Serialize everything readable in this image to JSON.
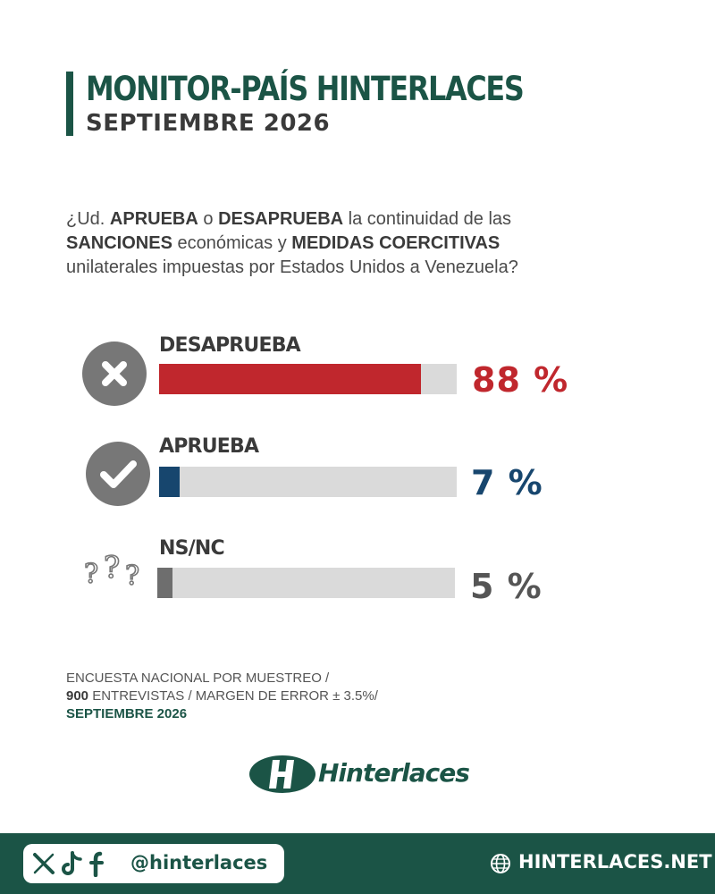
{
  "header": {
    "title": "MONITOR-PAÍS HINTERLACES",
    "subtitle": "SEPTIEMBRE 2026"
  },
  "question": {
    "p1": "¿Ud. ",
    "b1": "APRUEBA",
    "p2": " o ",
    "b2": "DESAPRUEBA",
    "p3": " la continuidad de las ",
    "b3": "SANCIONES",
    "p4": " económicas y ",
    "b4": "MEDIDAS COERCITIVAS",
    "p5": " unilaterales impuestas por Estados Unidos a Venezuela?"
  },
  "chart_data": {
    "type": "bar",
    "orientation": "horizontal",
    "unit": "%",
    "xlim": [
      0,
      100
    ],
    "categories": [
      "DESAPRUEBA",
      "APRUEBA",
      "NS/NC"
    ],
    "values": [
      88,
      7,
      5
    ],
    "value_labels": [
      "88 %",
      "7 %",
      "5 %"
    ],
    "colors": [
      "#c0272d",
      "#17466e",
      "#6e6e6e"
    ],
    "label_colors": [
      "#c0272d",
      "#17466e",
      "#555555"
    ],
    "icons": [
      "x-circle-icon",
      "check-circle-icon",
      "question-marks-icon"
    ]
  },
  "footnote": {
    "line1": "ENCUESTA NACIONAL POR MUESTREO /",
    "line2_bold": "900",
    "line2_rest": " ENTREVISTAS / MARGEN DE ERROR  ± 3.5%/",
    "line3": "SEPTIEMBRE 2026"
  },
  "logo": {
    "text": "Hinterlaces"
  },
  "footer": {
    "handle": "@hinterlaces",
    "site": "HINTERLACES.NET",
    "social_icons": [
      "x-icon",
      "tiktok-icon",
      "facebook-icon"
    ],
    "globe_icon": "globe-icon"
  },
  "colors": {
    "brand_green": "#1b5446",
    "track_gray": "#dadada"
  }
}
